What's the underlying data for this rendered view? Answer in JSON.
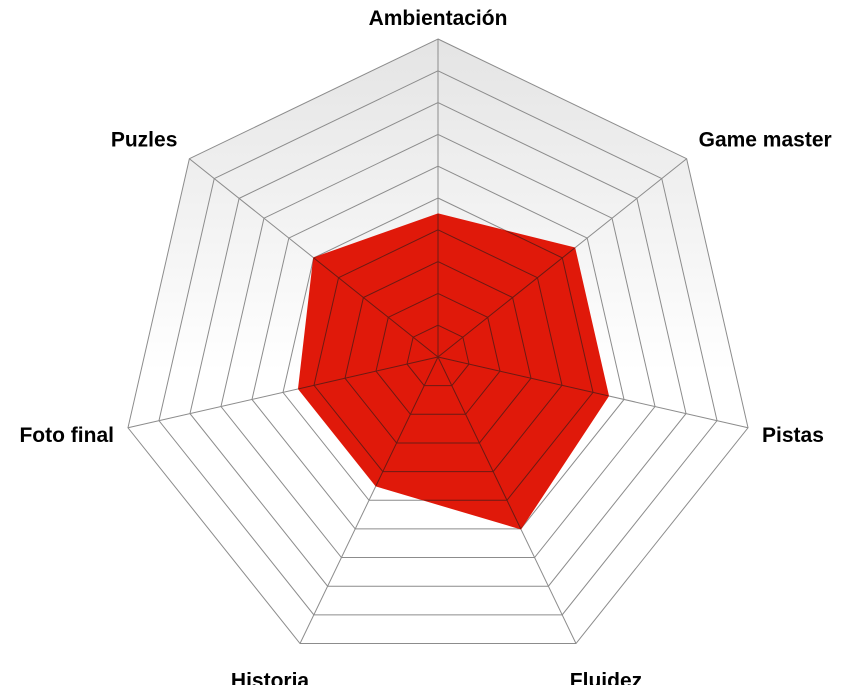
{
  "chart_data": {
    "type": "radar",
    "title": "",
    "categories": [
      "Ambientación",
      "Game master",
      "Pistas",
      "Fluidez",
      "Historia",
      "Foto final",
      "Puzles"
    ],
    "series": [
      {
        "values": [
          4.5,
          5.5,
          5.5,
          6.0,
          4.5,
          4.5,
          5.0
        ]
      }
    ],
    "rlim": [
      0,
      10
    ],
    "rings": 10,
    "grid": true,
    "colors": {
      "fill": "#e0190a",
      "grid_line": "#8c8c8c",
      "inner_grid_line": "#6b1a14",
      "background_light": "#ffffff",
      "background_dark": "#e6e6e6",
      "label": "#000000"
    }
  }
}
